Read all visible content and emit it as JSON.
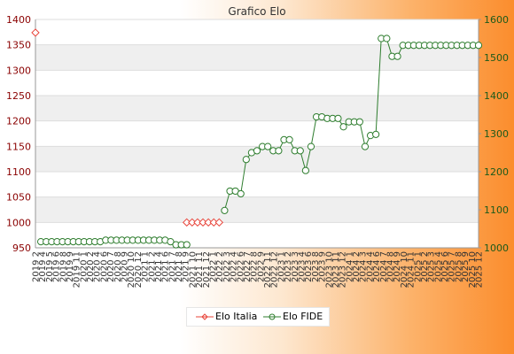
{
  "chart_data": {
    "type": "line",
    "title": "Grafico Elo",
    "xlabel": "",
    "ylabel": "",
    "grid": true,
    "legend_position": "bottom-center",
    "y_left_lim": [
      950,
      1400
    ],
    "y_left_ticks": [
      950,
      1000,
      1050,
      1100,
      1150,
      1200,
      1250,
      1300,
      1350,
      1400
    ],
    "y_right_lim": [
      1000,
      1600
    ],
    "y_right_ticks": [
      1000,
      1100,
      1200,
      1300,
      1400,
      1500,
      1600
    ],
    "categories": [
      "2019 2",
      "2019 3",
      "2019 4",
      "2019 5",
      "2019 6",
      "2019 7",
      "2019 8",
      "2019 9",
      "2019 10",
      "2019 11",
      "2019 12",
      "2020 1",
      "2020 2",
      "2020 3",
      "2020 4",
      "2020 5",
      "2020 6",
      "2020 7",
      "2020 8",
      "2020 9",
      "2020 10",
      "2020 11",
      "2020 12",
      "2021 1",
      "2021 2",
      "2021 3",
      "2021 4",
      "2021 5",
      "2021 6",
      "2021 7",
      "2021 8",
      "2021 9",
      "2021 10",
      "2021 11",
      "2021 12",
      "2022 1",
      "2022 2",
      "2022 3",
      "2022 4",
      "2022 5",
      "2022 6",
      "2022 7",
      "2022 8",
      "2022 9",
      "2022 10",
      "2022 11",
      "2022 12",
      "2023 1",
      "2023 2",
      "2023 3",
      "2023 4",
      "2023 5",
      "2023 6",
      "2023 7",
      "2023 8",
      "2023 9",
      "2023 10",
      "2023 11",
      "2023 12",
      "2024 1",
      "2024 2",
      "2024 3",
      "2024 4",
      "2024 5",
      "2024 6",
      "2024 7",
      "2024 8",
      "2024 9",
      "2024 10",
      "2024 11",
      "2024 12",
      "2025 1",
      "2025 2",
      "2025 3",
      "2025 4",
      "2025 5",
      "2025 6",
      "2025 7",
      "2025 8",
      "2025 9",
      "2025 10",
      "2025 11",
      "2025 12"
    ],
    "tick_labels": [
      "2019 2",
      "2019 4",
      "2019 5",
      "2019 6",
      "2019 8",
      "2019 9",
      "2019 11",
      "2020 1",
      "2020 2",
      "2020 4",
      "2020 6",
      "2020 7",
      "2020 8",
      "2020 9",
      "2020 10",
      "2020 12",
      "2021 1",
      "2021 2",
      "2021 4",
      "2021 6",
      "2021 7",
      "2021 8",
      "2021 9",
      "2021 10",
      "2021 11",
      "2021 12",
      "2022 1",
      "2022 2",
      "2022 3",
      "2022 4",
      "2022 6",
      "2022 7",
      "2022 8",
      "2022 9",
      "2022 11",
      "2022 12",
      "2023 1",
      "2023 2",
      "2023 3",
      "2023 4",
      "2023 6",
      "2023 8",
      "2023 9",
      "2023 10",
      "2023 11",
      "2023 12",
      "2024 1",
      "2024 2",
      "2024 3",
      "2024 4",
      "2024 6",
      "2024 7",
      "2024 8",
      "2024 9",
      "2024 10",
      "2024 11",
      "2025 1",
      "2025 2",
      "2025 3",
      "2025 4",
      "2025 6",
      "2025 7",
      "2025 8",
      "2025 9",
      "2025 10",
      "2025 12"
    ],
    "series": [
      {
        "name": "Elo Italia",
        "axis": "left",
        "color": "#e8443a",
        "marker": "diamond",
        "values": [
          1374,
          null,
          null,
          null,
          null,
          null,
          null,
          null,
          null,
          null,
          null,
          null,
          null,
          null,
          null,
          null,
          null,
          null,
          null,
          null,
          null,
          null,
          null,
          null,
          null,
          null,
          null,
          null,
          1000,
          1000,
          1000,
          1000,
          1000,
          1000,
          1000,
          null,
          null,
          null,
          null,
          null,
          null,
          null,
          null,
          null,
          null,
          null,
          null,
          null,
          null,
          null,
          null,
          null,
          null,
          null,
          null,
          null,
          null,
          null,
          null,
          null,
          null,
          null,
          null,
          null,
          null,
          null,
          null,
          null,
          null,
          null,
          null,
          null,
          null,
          null,
          null,
          null,
          null,
          null,
          null,
          null,
          null,
          null,
          null
        ]
      },
      {
        "name": "Elo FIDE",
        "axis": "right",
        "color": "#2e7d2e",
        "marker": "circle",
        "values": [
          null,
          1016,
          1016,
          1016,
          1016,
          1016,
          1016,
          1016,
          1016,
          1016,
          1016,
          1016,
          1016,
          1020,
          1020,
          1020,
          1020,
          1020,
          1020,
          1020,
          1020,
          1020,
          1020,
          1020,
          1020,
          1016,
          1008,
          1008,
          1008,
          null,
          null,
          null,
          null,
          null,
          null,
          1098,
          1149,
          1149,
          1142,
          1232,
          1250,
          1255,
          1266,
          1266,
          1255,
          1255,
          1284,
          1284,
          1255,
          1255,
          1203,
          1266,
          1344,
          1344,
          1340,
          1340,
          1340,
          1318,
          1331,
          1331,
          1331,
          1266,
          1295,
          1298,
          1550,
          1550,
          1503,
          1503,
          1532,
          1532,
          1532,
          1532,
          1532,
          1532,
          1532,
          1532,
          1532,
          1532,
          1532,
          1532,
          1532,
          1532,
          1532
        ]
      }
    ]
  }
}
